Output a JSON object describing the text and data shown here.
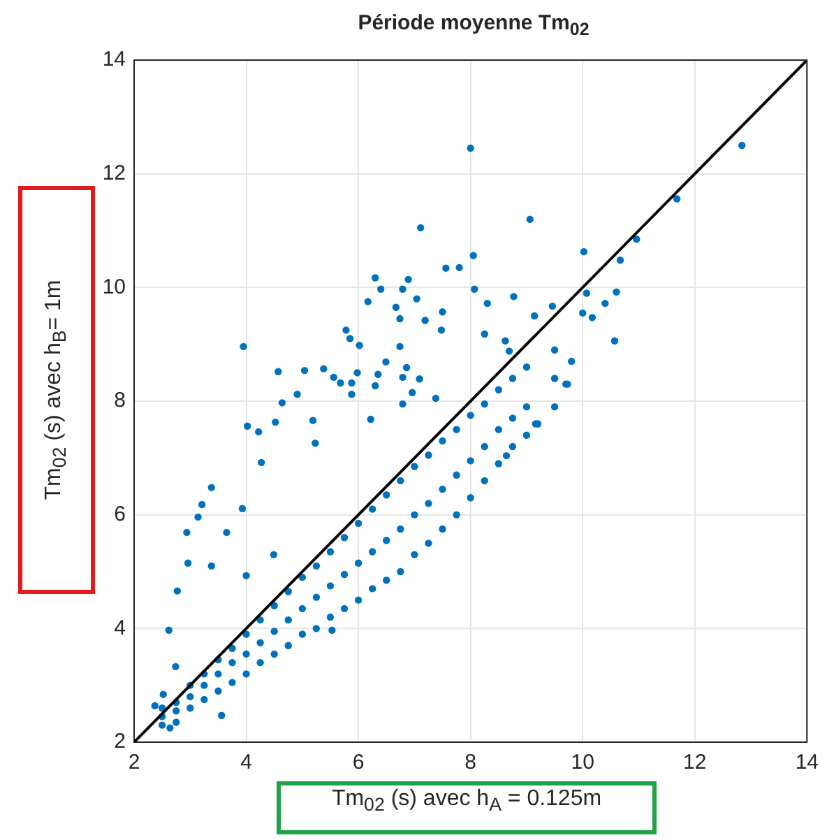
{
  "chart_data": {
    "type": "scatter",
    "title": "Période moyenne Tm$_{02}$",
    "xlabel": "Tm$_{02}$ (s) avec h$_{A}$ = 0.125m",
    "ylabel": "Tm$_{02}$ (s) avec h$_{B}$= 1m",
    "xlim": [
      2,
      14
    ],
    "ylim": [
      2,
      14
    ],
    "xticks": [
      2,
      4,
      6,
      8,
      10,
      12,
      14
    ],
    "yticks": [
      2,
      4,
      6,
      8,
      10,
      12,
      14
    ],
    "grid": true,
    "series": [
      {
        "type": "scatter",
        "marker": "circle",
        "color": "#0072bd",
        "x": [
          2.5,
          2.5,
          2.5,
          2.75,
          2.75,
          2.75,
          3.0,
          3.0,
          3.0,
          3.25,
          3.25,
          3.25,
          3.5,
          3.5,
          3.5,
          3.75,
          3.75,
          3.75,
          4.0,
          4.0,
          4.0,
          4.25,
          4.25,
          4.25,
          4.5,
          4.5,
          4.5,
          4.75,
          4.75,
          4.75,
          5.0,
          5.0,
          5.0,
          5.25,
          5.25,
          5.25,
          5.5,
          5.5,
          5.5,
          5.75,
          5.75,
          5.75,
          6.0,
          6.0,
          6.0,
          6.25,
          6.25,
          6.25,
          6.5,
          6.5,
          6.5,
          6.75,
          6.75,
          6.75,
          7.0,
          7.0,
          7.0,
          7.25,
          7.25,
          7.25,
          7.5,
          7.5,
          7.5,
          7.75,
          7.75,
          7.75,
          8.0,
          8.0,
          8.0,
          8.25,
          8.25,
          8.25,
          8.5,
          8.5,
          8.5,
          8.75,
          8.75,
          8.75,
          9.0,
          9.0,
          9.0,
          9.5,
          9.5,
          9.5,
          9.7,
          9.2,
          8.64,
          9.8,
          8.0,
          9.06,
          3.95,
          7.11,
          12.84,
          11.68,
          10.96,
          10.67,
          10.02,
          8.05,
          7.56,
          7.8,
          8.07,
          8.77,
          10.07,
          10.6,
          10.4,
          10.57,
          9.46,
          10.0,
          10.17,
          8.3,
          9.14,
          7.5,
          8.25,
          8.62,
          8.69,
          9.73,
          9.16,
          6.89,
          6.3,
          6.4,
          6.79,
          6.17,
          7.04,
          6.67,
          6.74,
          7.19,
          5.78,
          5.85,
          6.02,
          6.74,
          7.48,
          4.57,
          5.04,
          5.38,
          5.56,
          5.68,
          5.98,
          6.35,
          6.49,
          6.86,
          6.79,
          7.09,
          6.3,
          4.91,
          4.64,
          5.88,
          6.96,
          3.38,
          2.94,
          3.14,
          3.21,
          2.77,
          2.62,
          2.74,
          2.52,
          2.37,
          2.64,
          3.56,
          5.53,
          4.02,
          4.22,
          4.52,
          5.23,
          5.19,
          5.88,
          4.27,
          3.93,
          3.65,
          2.96,
          3.38,
          4.0,
          4.49,
          6.22,
          6.79,
          7.38
        ],
        "values": [
          2.3,
          2.45,
          2.6,
          2.35,
          2.55,
          2.7,
          2.6,
          2.8,
          3.0,
          2.75,
          3.0,
          3.2,
          2.9,
          3.2,
          3.45,
          3.05,
          3.4,
          3.65,
          3.2,
          3.55,
          3.9,
          3.4,
          3.75,
          4.15,
          3.55,
          3.95,
          4.4,
          3.7,
          4.15,
          4.65,
          3.9,
          4.35,
          4.9,
          4.0,
          4.55,
          5.1,
          4.2,
          4.75,
          5.35,
          4.35,
          4.95,
          5.6,
          4.5,
          5.15,
          5.85,
          4.7,
          5.35,
          6.1,
          4.85,
          5.55,
          6.35,
          5.0,
          5.75,
          6.6,
          5.3,
          6.0,
          6.85,
          5.5,
          6.2,
          7.05,
          5.75,
          6.45,
          7.3,
          6.0,
          6.7,
          7.5,
          6.3,
          6.95,
          7.75,
          6.6,
          7.2,
          7.95,
          6.9,
          7.5,
          8.2,
          7.2,
          7.7,
          8.4,
          7.4,
          7.9,
          8.6,
          7.9,
          8.4,
          8.9,
          8.3,
          7.6,
          7.04,
          8.7,
          12.45,
          11.2,
          8.96,
          11.05,
          12.5,
          11.56,
          10.85,
          10.48,
          10.63,
          10.56,
          10.34,
          10.35,
          9.97,
          9.84,
          9.9,
          9.92,
          9.72,
          9.06,
          9.67,
          9.55,
          9.47,
          9.72,
          9.5,
          9.57,
          9.18,
          9.06,
          8.88,
          8.3,
          7.6,
          10.14,
          10.17,
          9.97,
          9.97,
          9.75,
          9.8,
          9.65,
          9.45,
          9.42,
          9.25,
          9.1,
          8.98,
          8.96,
          9.25,
          8.52,
          8.54,
          8.57,
          8.42,
          8.32,
          8.5,
          8.47,
          8.69,
          8.59,
          8.42,
          8.39,
          8.27,
          8.12,
          7.97,
          8.12,
          8.15,
          6.48,
          5.69,
          5.96,
          6.18,
          4.66,
          3.97,
          3.33,
          2.84,
          2.64,
          2.25,
          2.47,
          3.97,
          7.56,
          7.46,
          7.63,
          7.26,
          7.66,
          8.32,
          6.92,
          6.11,
          5.69,
          5.15,
          5.1,
          4.93,
          5.3,
          7.68,
          7.95,
          8.05
        ]
      },
      {
        "type": "line",
        "color": "#000000",
        "x": [
          2,
          14
        ],
        "values": [
          2,
          14
        ]
      }
    ]
  }
}
